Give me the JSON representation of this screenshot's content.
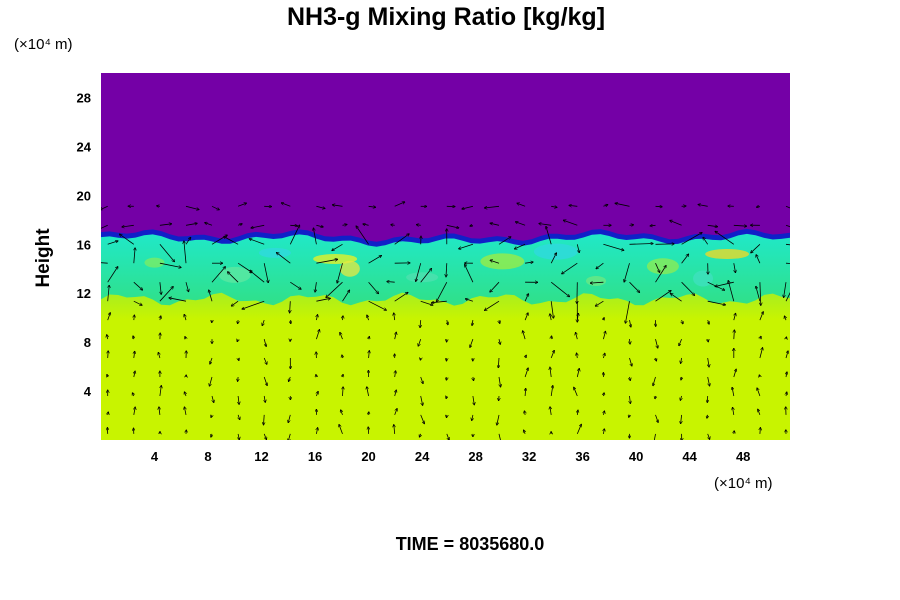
{
  "chart_data": {
    "type": "heatmap",
    "title": "NH3-g Mixing Ratio [kg/kg]",
    "ylabel": "Height",
    "xunit": "(×10⁴ m)",
    "yunit": "(×10⁴ m)",
    "xlim": [
      0,
      51.5
    ],
    "ylim": [
      0,
      30
    ],
    "xticks": [
      4,
      8,
      12,
      16,
      20,
      24,
      28,
      32,
      36,
      40,
      44,
      48
    ],
    "yticks": [
      4,
      8,
      12,
      16,
      20,
      24,
      28
    ],
    "field": "NH3-g mixing ratio",
    "overlay": "wind vectors",
    "layers": [
      {
        "name": "upper",
        "from_height": 16.5,
        "to_height": 30,
        "color": "#7400a6"
      },
      {
        "name": "transition",
        "from_height": 16.0,
        "to_height": 17.0,
        "color": "#1020c8"
      },
      {
        "name": "mixing",
        "from_height": 11.0,
        "to_height": 16.5,
        "color": "#30e090"
      },
      {
        "name": "lower",
        "from_height": 0,
        "to_height": 11.0,
        "color": "#c4f400"
      }
    ],
    "time_label": "TIME = 8035680.0"
  }
}
